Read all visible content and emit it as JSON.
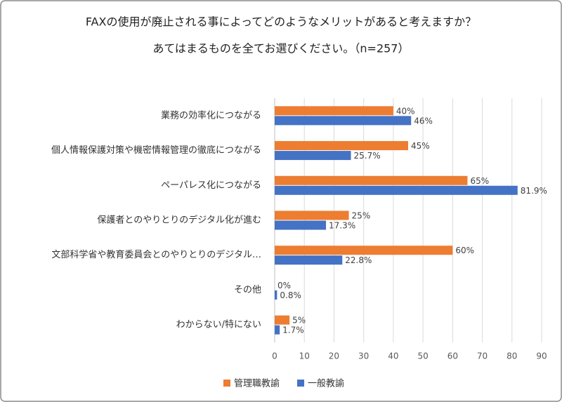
{
  "chart_data": {
    "type": "bar",
    "orientation": "horizontal",
    "title_lines": [
      "FAXの使用が廃止される事によってどのようなメリットがあると考えますか？",
      "あてはまるものを全てお選びください。（n=257）"
    ],
    "categories": [
      "業務の効率化につながる",
      "個人情報保護対策や機密情報管理の徹底につながる",
      "ペーパレス化につながる",
      "保護者とのやりとりのデジタル化が進む",
      "文部科学省や教育委員会とのやりとりのデジタル…",
      "その他",
      "わからない/特にない"
    ],
    "series": [
      {
        "name": "管理職教諭",
        "color": "#ed7d31",
        "values": [
          40,
          45,
          65,
          25,
          60,
          0,
          5
        ],
        "value_labels": [
          "40%",
          "45%",
          "65%",
          "25%",
          "60%",
          "0%",
          "5%"
        ]
      },
      {
        "name": "一般教諭",
        "color": "#4472c4",
        "values": [
          46,
          25.7,
          81.9,
          17.3,
          22.8,
          0.8,
          1.7
        ],
        "value_labels": [
          "46%",
          "25.7%",
          "81.9%",
          "17.3%",
          "22.8%",
          "0.8%",
          "1.7%"
        ]
      }
    ],
    "xlim": [
      0,
      90
    ],
    "xticks": [
      0,
      10,
      20,
      30,
      40,
      50,
      60,
      70,
      80,
      90
    ],
    "grid": true,
    "legend": "bottom"
  }
}
